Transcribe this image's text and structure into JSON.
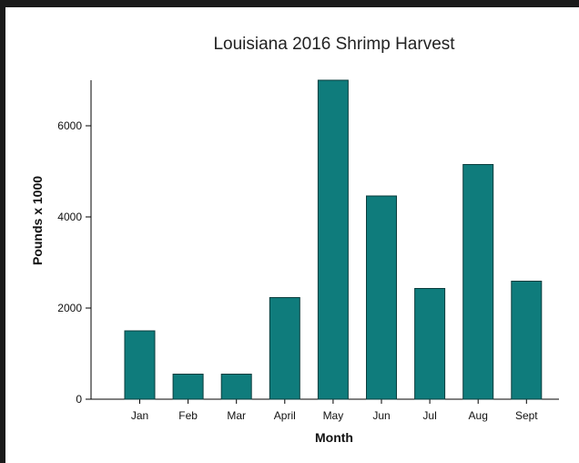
{
  "colors": {
    "bar_fill": "#0f7c7c",
    "bar_stroke": "#0a3d3d",
    "background": "#ffffff",
    "frame": "#1a1a1a"
  },
  "chart_data": {
    "type": "bar",
    "title": "Louisiana 2016 Shrimp Harvest",
    "xlabel": "Month",
    "ylabel": "Pounds x 1000",
    "categories": [
      "Jan",
      "Feb",
      "Mar",
      "April",
      "May",
      "Jun",
      "Jul",
      "Aug",
      "Sept"
    ],
    "values": [
      1500,
      550,
      550,
      2230,
      7000,
      4460,
      2430,
      5150,
      2590
    ],
    "ylim": [
      0,
      7000
    ],
    "yticks": [
      0,
      2000,
      4000,
      6000
    ],
    "grid": false,
    "legend": "none"
  }
}
